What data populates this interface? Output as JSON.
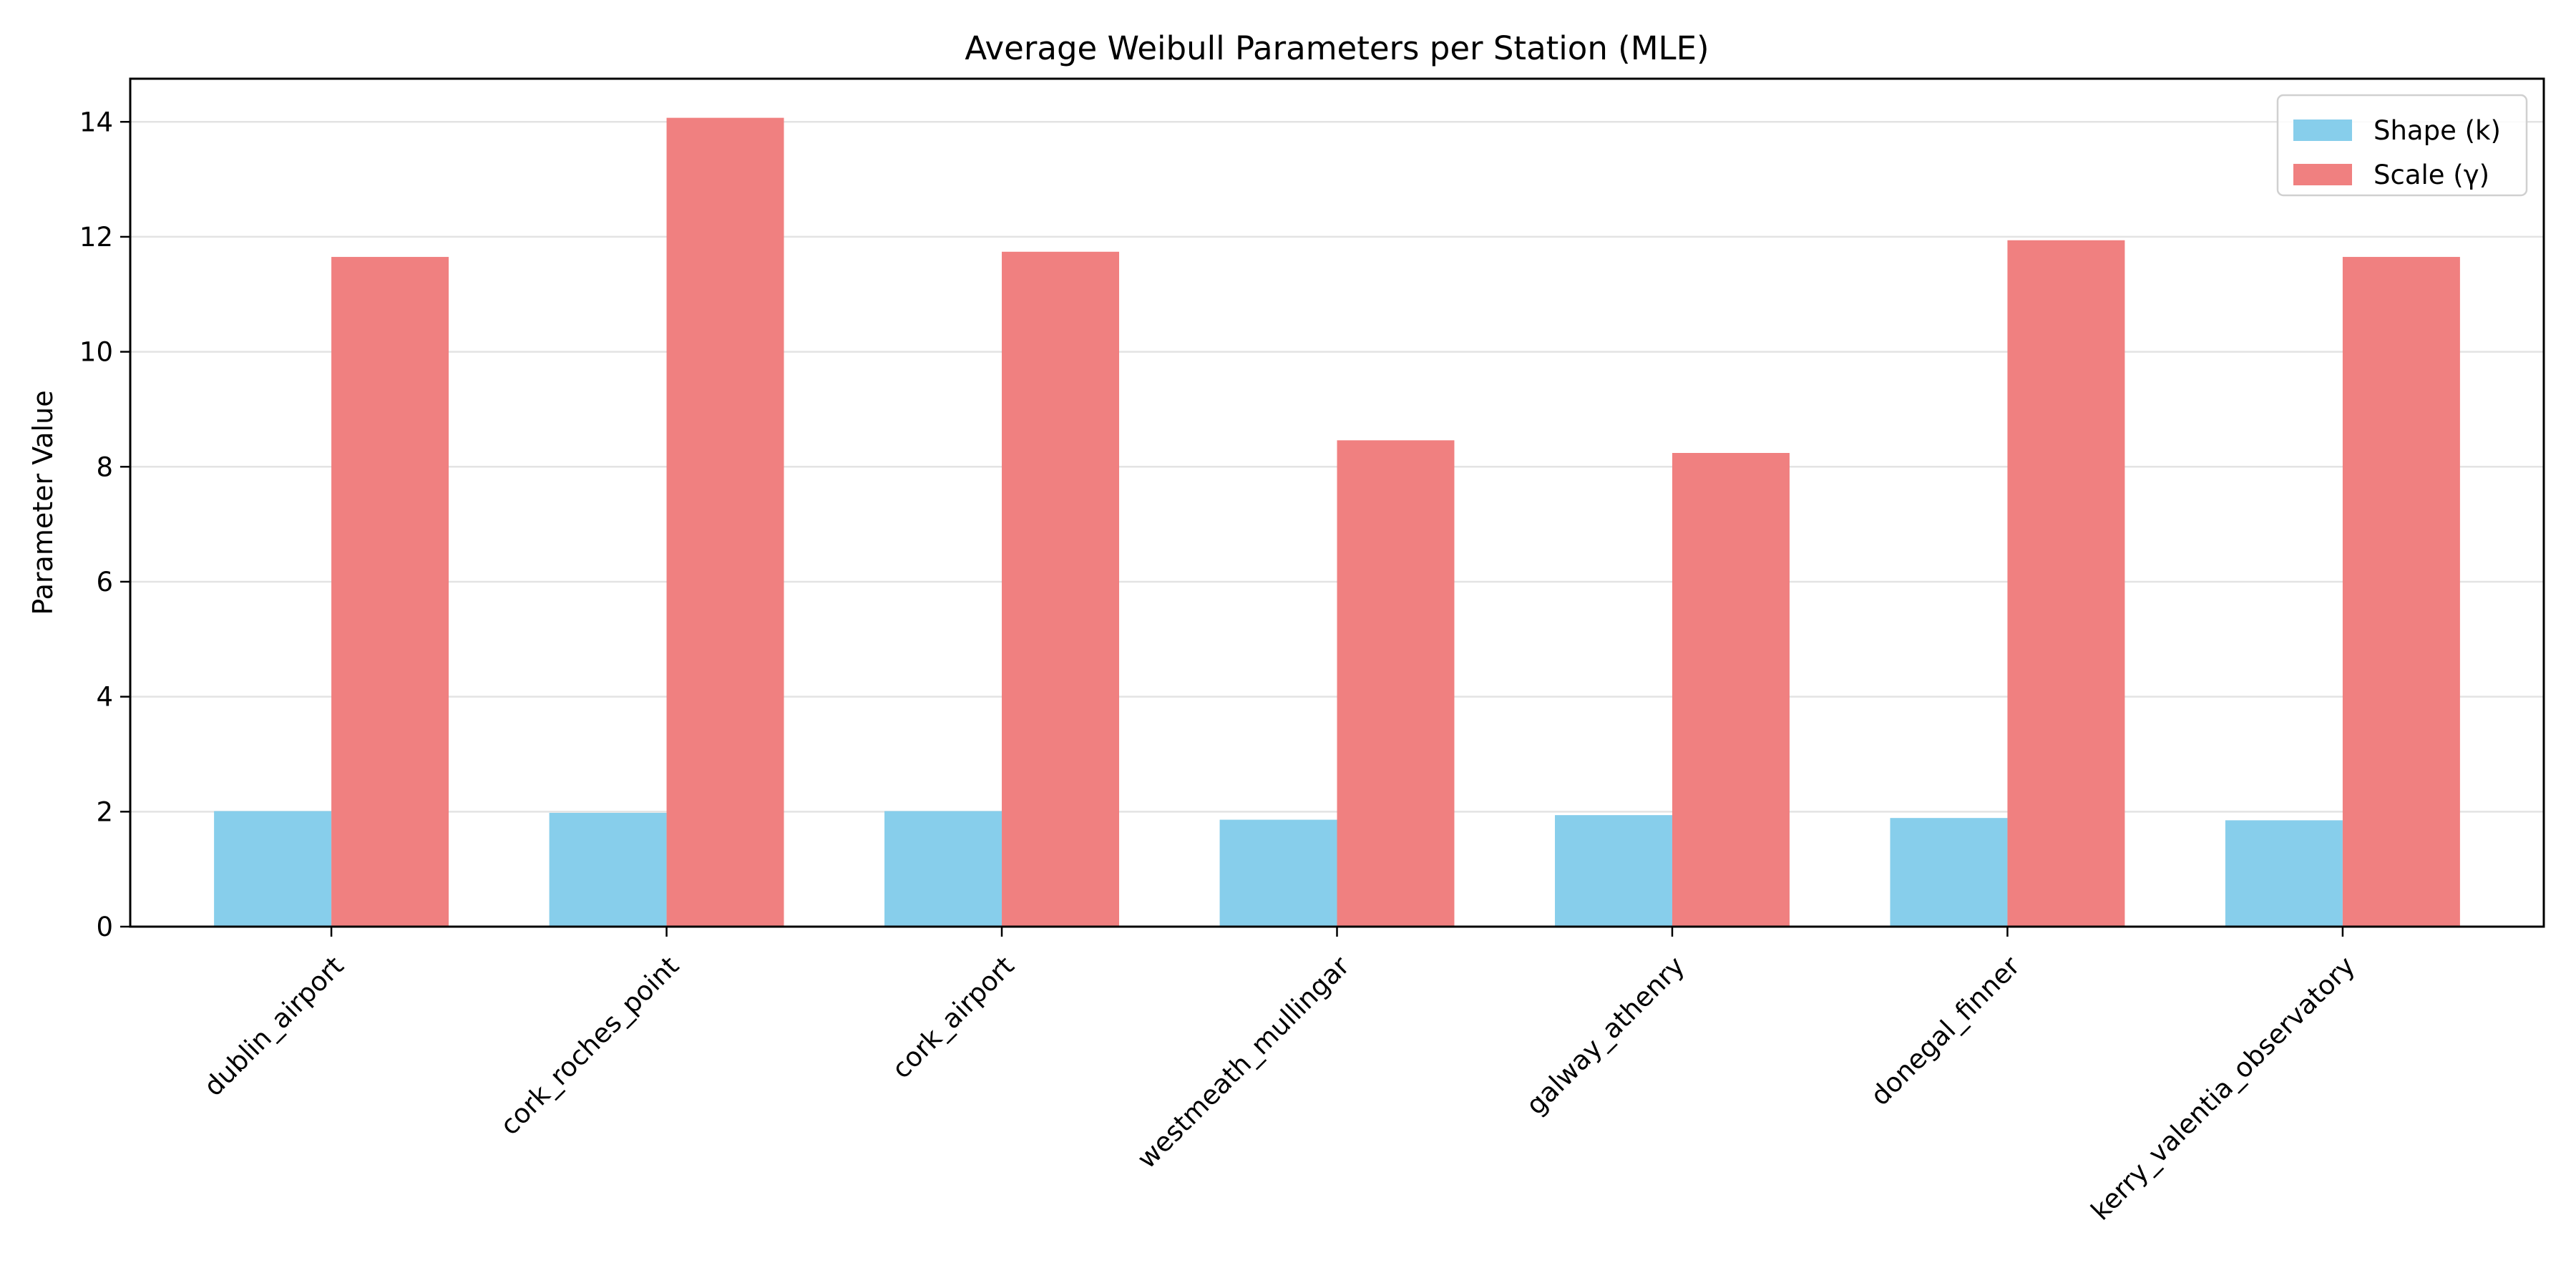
{
  "chart_data": {
    "type": "bar",
    "title": "Average Weibull Parameters per Station (MLE)",
    "xlabel": "",
    "ylabel": "Parameter Value",
    "categories": [
      "dublin_airport",
      "cork_roches_point",
      "cork_airport",
      "westmeath_mullingar",
      "galway_athenry",
      "donegal_finner",
      "kerry_valentia_observatory"
    ],
    "series": [
      {
        "name": "Shape (k)",
        "color": "#87CEEB",
        "values": [
          2.01,
          1.98,
          2.01,
          1.86,
          1.94,
          1.89,
          1.85
        ]
      },
      {
        "name": "Scale (γ)",
        "color": "#F08080",
        "values": [
          11.65,
          14.07,
          11.74,
          8.46,
          8.24,
          11.94,
          11.65
        ]
      }
    ],
    "ylim": [
      0,
      14.75
    ],
    "yticks": [
      0,
      2,
      4,
      6,
      8,
      10,
      12,
      14
    ],
    "grid": "horizontal",
    "legend_position": "top-right"
  }
}
